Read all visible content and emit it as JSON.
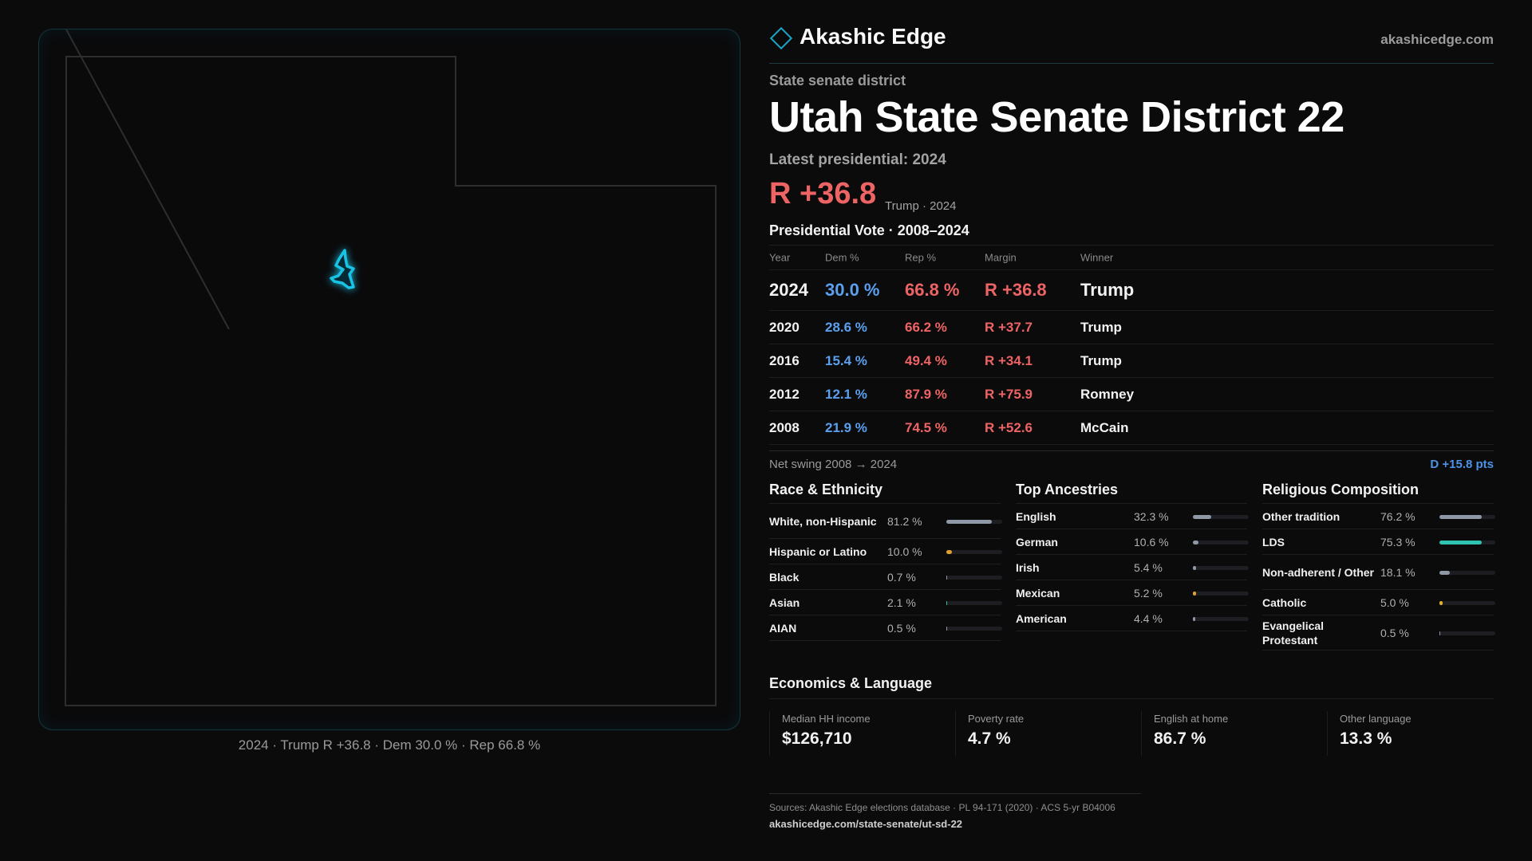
{
  "brand": {
    "name": "Akashic Edge",
    "url": "akashicedge.com",
    "accent": "#1aa6c7"
  },
  "district": {
    "kicker": "State senate district",
    "title": "Utah State Senate District 22",
    "latest_label": "Latest presidential: 2024",
    "margin": "R +36.8",
    "margin_sub": "Trump · 2024"
  },
  "map": {
    "caption": "2024 · Trump R +36.8 · Dem 30.0 % · Rep 66.8 %",
    "highlight_color": "#19c3e6"
  },
  "presidential": {
    "title": "Presidential Vote · 2008–2024",
    "headers": {
      "year": "Year",
      "dem": "Dem %",
      "rep": "Rep %",
      "margin": "Margin",
      "winner": "Winner"
    },
    "rows": [
      {
        "year": "2024",
        "dem": "30.0 %",
        "rep": "66.8 %",
        "margin": "R +36.8",
        "winner": "Trump"
      },
      {
        "year": "2020",
        "dem": "28.6 %",
        "rep": "66.2 %",
        "margin": "R +37.7",
        "winner": "Trump"
      },
      {
        "year": "2016",
        "dem": "15.4 %",
        "rep": "49.4 %",
        "margin": "R +34.1",
        "winner": "Trump"
      },
      {
        "year": "2012",
        "dem": "12.1 %",
        "rep": "87.9 %",
        "margin": "R +75.9",
        "winner": "Romney"
      },
      {
        "year": "2008",
        "dem": "21.9 %",
        "rep": "74.5 %",
        "margin": "R +52.6",
        "winner": "McCain"
      }
    ],
    "swing_label": "Net swing 2008 → 2024",
    "swing_value": "D +15.8 pts"
  },
  "race": {
    "title": "Race & Ethnicity",
    "items": [
      {
        "label": "White, non-Hispanic",
        "pct": "81.2 %",
        "value": 81.2,
        "color": "#8e98a6"
      },
      {
        "label": "Hispanic or Latino",
        "pct": "10.0 %",
        "value": 10.0,
        "color": "#e0a030"
      },
      {
        "label": "Black",
        "pct": "0.7 %",
        "value": 0.7,
        "color": "#8e98a6"
      },
      {
        "label": "Asian",
        "pct": "2.1 %",
        "value": 2.1,
        "color": "#2ec4a0"
      },
      {
        "label": "AIAN",
        "pct": "0.5 %",
        "value": 0.5,
        "color": "#8e98a6"
      }
    ]
  },
  "ancestry": {
    "title": "Top Ancestries",
    "items": [
      {
        "label": "English",
        "pct": "32.3 %",
        "value": 32.3,
        "color": "#8e98a6"
      },
      {
        "label": "German",
        "pct": "10.6 %",
        "value": 10.6,
        "color": "#8e98a6"
      },
      {
        "label": "Irish",
        "pct": "5.4 %",
        "value": 5.4,
        "color": "#8e98a6"
      },
      {
        "label": "Mexican",
        "pct": "5.2 %",
        "value": 5.2,
        "color": "#e0a030"
      },
      {
        "label": "American",
        "pct": "4.4 %",
        "value": 4.4,
        "color": "#8e98a6"
      }
    ]
  },
  "religion": {
    "title": "Religious Composition",
    "items": [
      {
        "label": "Other tradition",
        "pct": "76.2 %",
        "value": 76.2,
        "color": "#8e98a6"
      },
      {
        "label": "LDS",
        "pct": "75.3 %",
        "value": 75.3,
        "color": "#2ec4b0"
      },
      {
        "label": "Non-adherent / Other",
        "pct": "18.1 %",
        "value": 18.1,
        "color": "#8e98a6"
      },
      {
        "label": "Catholic",
        "pct": "5.0 %",
        "value": 5.0,
        "color": "#e0b030"
      },
      {
        "label": "Evangelical Protestant",
        "pct": "0.5 %",
        "value": 0.5,
        "color": "#8e98a6"
      }
    ]
  },
  "economics": {
    "title": "Economics & Language",
    "items": [
      {
        "label": "Median HH income",
        "value": "$126,710"
      },
      {
        "label": "Poverty rate",
        "value": "4.7 %"
      },
      {
        "label": "English at home",
        "value": "86.7 %"
      },
      {
        "label": "Other language",
        "value": "13.3 %"
      }
    ]
  },
  "footer": {
    "sources": "Sources: Akashic Edge elections database · PL 94-171 (2020) · ACS 5-yr B04006",
    "url": "akashicedge.com/state-senate/ut-sd-22"
  }
}
